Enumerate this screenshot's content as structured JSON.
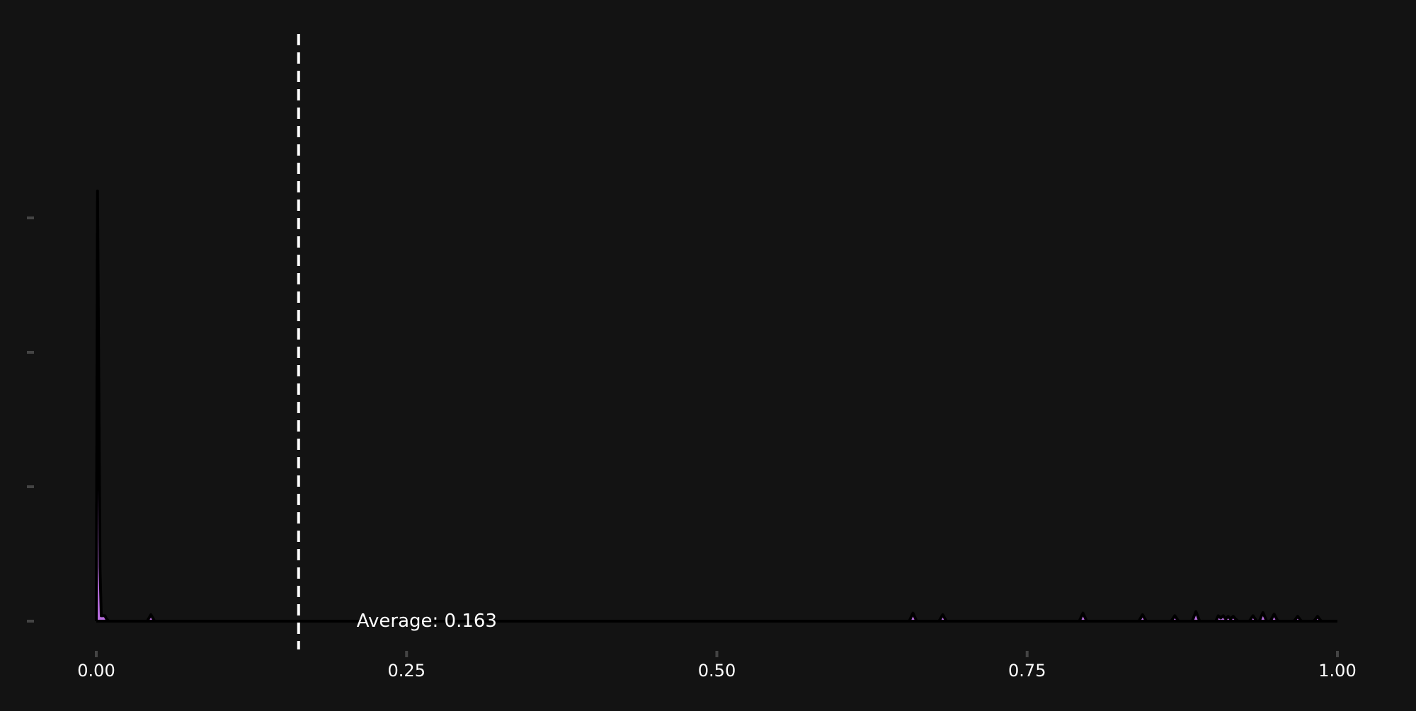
{
  "colors": {
    "background": "#131313",
    "fill": "#b96ee0",
    "outline": "#000000",
    "vline": "#ffffff",
    "tick_text": "#ffffff",
    "tick_mark": "#444444",
    "annotation_text": "#ffffff"
  },
  "chart_data": {
    "type": "area",
    "title": "",
    "xlabel": "",
    "ylabel": "",
    "xlim": [
      0,
      1
    ],
    "ylim": [
      0,
      1.1
    ],
    "x_ticks": [
      "0.00",
      "0.25",
      "0.50",
      "0.75",
      "1.00"
    ],
    "x_tick_values": [
      0,
      0.25,
      0.5,
      0.75,
      1.0
    ],
    "y_tick_values": [
      0,
      0.25,
      0.5,
      0.75
    ],
    "y_tick_labels_visible": false,
    "grid": false,
    "mean_line": {
      "value": 0.163,
      "style": "dashed",
      "label": "Average: 0.163"
    },
    "series": [
      {
        "x": [
          0.0,
          0.001,
          0.003,
          0.004,
          0.007,
          0.008,
          0.01,
          0.041,
          0.044,
          0.047,
          0.655,
          0.658,
          0.661,
          0.679,
          0.682,
          0.685,
          0.792,
          0.795,
          0.798,
          0.84,
          0.843,
          0.846,
          0.866,
          0.869,
          0.872,
          0.883,
          0.886,
          0.889,
          0.902,
          0.904,
          0.906,
          0.908,
          0.91,
          0.912,
          0.914,
          0.916,
          0.918,
          0.92,
          0.929,
          0.932,
          0.935,
          0.937,
          0.94,
          0.943,
          0.946,
          0.949,
          0.952,
          0.955,
          0.965,
          0.968,
          0.971,
          0.981,
          0.984,
          0.987
        ],
        "y": [
          0.0,
          0.8,
          0.1,
          0.01,
          0.01,
          0.005,
          0.0,
          0.0,
          0.012,
          0.0,
          0.0,
          0.015,
          0.0,
          0.0,
          0.012,
          0.0,
          0.0,
          0.015,
          0.0,
          0.0,
          0.012,
          0.0,
          0.0,
          0.01,
          0.0,
          0.0,
          0.018,
          0.0,
          0.0,
          0.01,
          0.006,
          0.01,
          0.004,
          0.009,
          0.004,
          0.009,
          0.004,
          0.0,
          0.0,
          0.01,
          0.0,
          0.0,
          0.016,
          0.0,
          0.0,
          0.013,
          0.0,
          0.0,
          0.0,
          0.009,
          0.0,
          0.0,
          0.009,
          0.0
        ]
      }
    ]
  }
}
